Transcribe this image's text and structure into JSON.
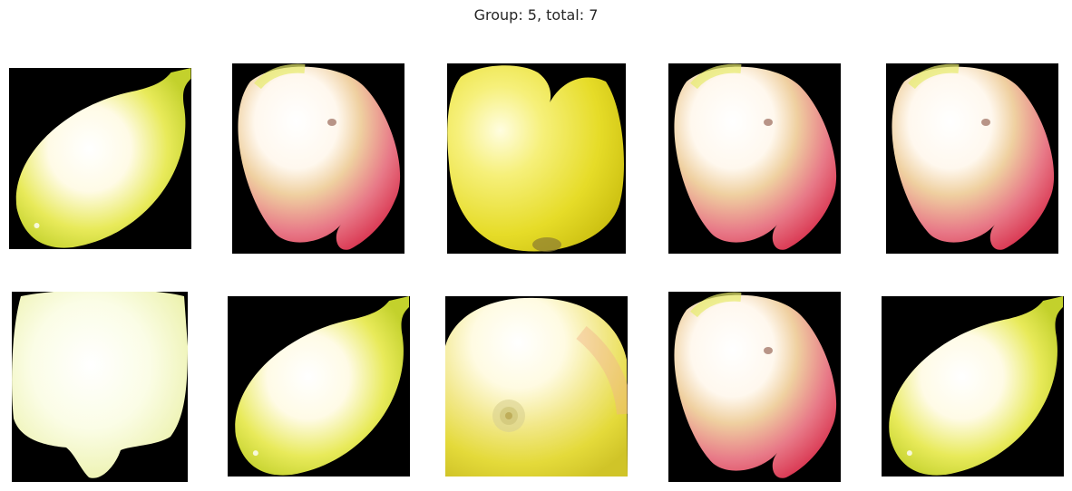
{
  "figure": {
    "title": "Group: 5, total: 7"
  },
  "tiles": [
    {
      "name": "fruit-tile-1",
      "fruit_color": "yellow-green",
      "variant": "pear-stem"
    },
    {
      "name": "fruit-tile-2",
      "fruit_color": "pink-red",
      "variant": "red-oval"
    },
    {
      "name": "fruit-tile-3",
      "fruit_color": "yellow",
      "variant": "apple-top"
    },
    {
      "name": "fruit-tile-4",
      "fruit_color": "pink-red",
      "variant": "red-oval"
    },
    {
      "name": "fruit-tile-5",
      "fruit_color": "pink-red",
      "variant": "red-oval"
    },
    {
      "name": "fruit-tile-6",
      "fruit_color": "pale-yellow",
      "variant": "pale-blob"
    },
    {
      "name": "fruit-tile-7",
      "fruit_color": "yellow-green",
      "variant": "pear-stem"
    },
    {
      "name": "fruit-tile-8",
      "fruit_color": "yellow",
      "variant": "apple-bottom"
    },
    {
      "name": "fruit-tile-9",
      "fruit_color": "pink-red",
      "variant": "red-oval"
    },
    {
      "name": "fruit-tile-10",
      "fruit_color": "yellow-green",
      "variant": "pear-stem"
    }
  ]
}
